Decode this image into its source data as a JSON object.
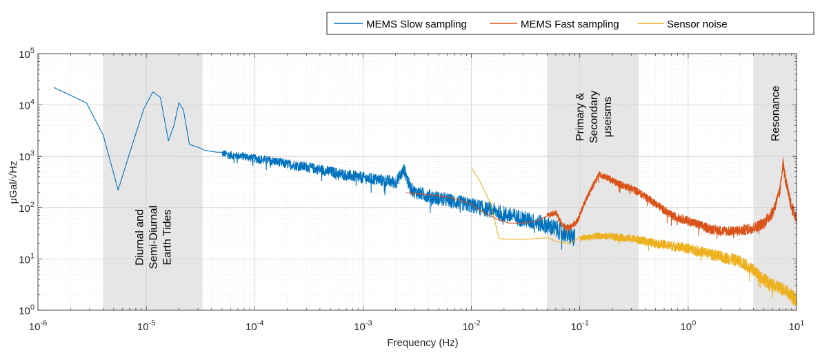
{
  "chart_data": {
    "type": "line",
    "title": "",
    "xlabel": "Frequency (Hz)",
    "ylabel": "μGal/√Hz",
    "x_scale": "log",
    "y_scale": "log",
    "xlim": [
      1e-06,
      10
    ],
    "ylim": [
      1,
      100000
    ],
    "grid": true,
    "legend_position": "top-right",
    "x_ticks": [
      {
        "base": "10",
        "exp": "-6"
      },
      {
        "base": "10",
        "exp": "-5"
      },
      {
        "base": "10",
        "exp": "-4"
      },
      {
        "base": "10",
        "exp": "-3"
      },
      {
        "base": "10",
        "exp": "-2"
      },
      {
        "base": "10",
        "exp": "-1"
      },
      {
        "base": "10",
        "exp": "0"
      },
      {
        "base": "10",
        "exp": "1"
      }
    ],
    "y_ticks": [
      {
        "base": "10",
        "exp": "0"
      },
      {
        "base": "10",
        "exp": "1"
      },
      {
        "base": "10",
        "exp": "2"
      },
      {
        "base": "10",
        "exp": "3"
      },
      {
        "base": "10",
        "exp": "4"
      },
      {
        "base": "10",
        "exp": "5"
      }
    ],
    "bands": [
      {
        "x0": 4e-06,
        "x1": 3.3e-05,
        "color": "#e6e6e6",
        "label_lines": [
          "Diurnal and",
          "Semi-Diurnal",
          "Earth Tides"
        ]
      },
      {
        "x0": 0.05,
        "x1": 0.35,
        "color": "#e6e6e6",
        "label_lines": [
          "Primary &",
          "Secondary",
          "μseisms"
        ]
      },
      {
        "x0": 4,
        "x1": 10,
        "color": "#e6e6e6",
        "label_lines": [
          "Resonance"
        ]
      }
    ],
    "series": [
      {
        "name": "MEMS Slow sampling",
        "color": "#0072BD",
        "x": [
          1.4e-06,
          2.8e-06,
          4e-06,
          5.5e-06,
          7.5e-06,
          9.5e-06,
          1.15e-05,
          1.35e-05,
          1.6e-05,
          1.8e-05,
          2e-05,
          2.2e-05,
          2.5e-05,
          3e-05,
          3.5e-05,
          4.5e-05,
          6e-05,
          8e-05,
          0.0001,
          0.00015,
          0.0002,
          0.0003,
          0.0005,
          0.0007,
          0.001,
          0.0015,
          0.002,
          0.0024,
          0.0027,
          0.003,
          0.004,
          0.005,
          0.007,
          0.01,
          0.015,
          0.02,
          0.03,
          0.05,
          0.07,
          0.09
        ],
        "y": [
          22000,
          11000,
          2600,
          220,
          1800,
          8500,
          18000,
          14000,
          2000,
          4000,
          11000,
          8000,
          1700,
          1500,
          1300,
          1200,
          1050,
          1000,
          900,
          800,
          700,
          620,
          500,
          430,
          380,
          340,
          310,
          550,
          250,
          200,
          170,
          150,
          130,
          110,
          90,
          75,
          60,
          45,
          33,
          25
        ],
        "noise_amp": 0.18,
        "noise_from": 5e-05
      },
      {
        "name": "MEMS Fast sampling",
        "color": "#D95319",
        "x": [
          0.0025,
          0.004,
          0.006,
          0.008,
          0.01,
          0.013,
          0.017,
          0.022,
          0.03,
          0.04,
          0.05,
          0.06,
          0.07,
          0.08,
          0.095,
          0.11,
          0.13,
          0.15,
          0.18,
          0.22,
          0.28,
          0.35,
          0.5,
          0.7,
          1,
          1.5,
          2,
          3,
          4,
          5,
          6,
          7,
          7.5,
          8,
          9,
          10
        ],
        "y": [
          195,
          180,
          160,
          140,
          115,
          80,
          60,
          50,
          50,
          55,
          70,
          80,
          45,
          40,
          55,
          120,
          250,
          450,
          380,
          300,
          250,
          200,
          120,
          70,
          55,
          40,
          35,
          35,
          40,
          50,
          80,
          200,
          750,
          300,
          100,
          60
        ],
        "noise_amp": 0.12,
        "noise_from": 0.05
      },
      {
        "name": "Sensor noise",
        "color": "#EDB120",
        "x": [
          0.01,
          0.012,
          0.015,
          0.018,
          0.022,
          0.03,
          0.04,
          0.05,
          0.06,
          0.08,
          0.1,
          0.15,
          0.2,
          0.3,
          0.5,
          0.7,
          1,
          1.5,
          2,
          3,
          4,
          5,
          6,
          8,
          10
        ],
        "y": [
          600,
          320,
          120,
          25,
          24,
          24,
          25,
          26,
          22,
          20,
          25,
          28,
          27,
          25,
          20,
          18,
          16,
          13,
          11,
          9,
          6,
          4,
          3,
          2.5,
          1.5
        ],
        "noise_amp": 0.14,
        "noise_from": 0.1
      }
    ]
  }
}
